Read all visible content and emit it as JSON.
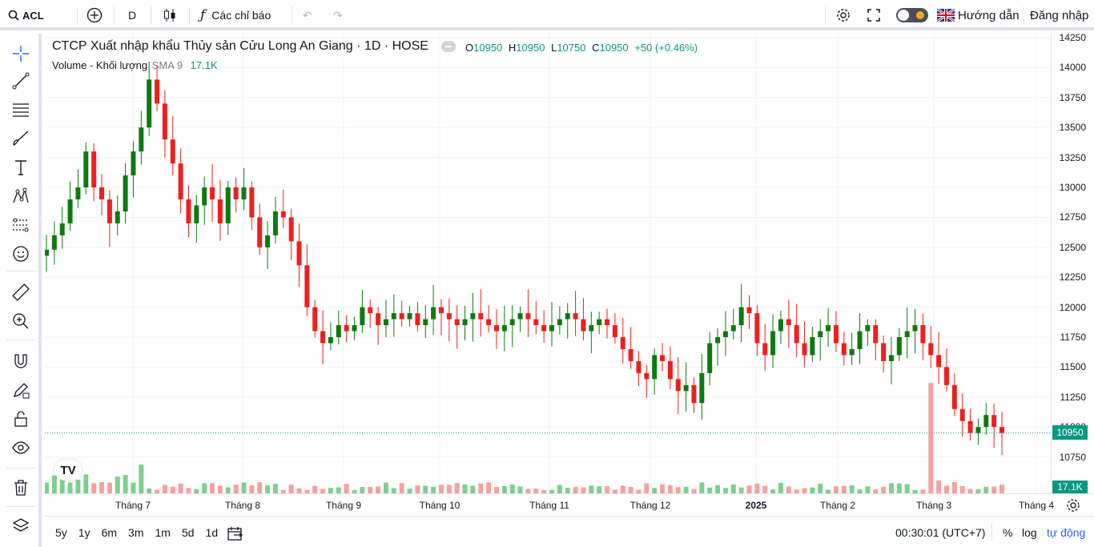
{
  "topbar": {
    "symbol": "ACL",
    "interval": "D",
    "indicators_label": "Các chỉ báo",
    "help_label": "Hướng dẫn",
    "login_label": "Đăng nhập"
  },
  "legend": {
    "title": "CTCP Xuất nhập khẩu Thủy sản Cửu Long An Giang · 1D · HOSE",
    "o_label": "O",
    "o_value": "10950",
    "h_label": "H",
    "h_value": "10950",
    "l_label": "L",
    "l_value": "10750",
    "c_label": "C",
    "c_value": "10950",
    "change": "+50 (+0.46%)"
  },
  "volume_legend": {
    "name": "Volume - Khối lượng",
    "sma": "SMA 9",
    "value": "17.1K"
  },
  "price_axis": {
    "labels": [
      "14250",
      "14000",
      "13750",
      "13500",
      "13250",
      "13000",
      "12750",
      "12500",
      "12250",
      "12000",
      "11750",
      "11500",
      "11250",
      "11000",
      "10750"
    ],
    "last_price": "10950",
    "last_volume": "17.1K"
  },
  "time_axis": {
    "labels": [
      "Tháng 7",
      "Tháng 8",
      "Tháng 9",
      "Tháng 10",
      "Tháng 11",
      "Tháng 12",
      "2025",
      "Tháng 2",
      "Tháng 3",
      "Tháng 4"
    ]
  },
  "bottombar": {
    "ranges": [
      "5y",
      "1y",
      "6m",
      "3m",
      "1m",
      "5d",
      "1d"
    ],
    "clock": "00:30:01 (UTC+7)",
    "percent": "%",
    "log": "log",
    "auto": "tự động"
  },
  "colors": {
    "up": "#0e7a0e",
    "down": "#f01e1e",
    "vol_up": "#7fcf8f",
    "vol_down": "#f7a0a0",
    "tag": "#089981"
  },
  "chart_data": {
    "type": "candlestick",
    "ylim": [
      10650,
      14300
    ],
    "last_close": 10950,
    "closes_approx": [
      12480,
      12600,
      12700,
      12900,
      13000,
      13300,
      13000,
      12900,
      12700,
      12800,
      13100,
      13300,
      13500,
      13900,
      13700,
      13400,
      13200,
      12900,
      12700,
      12850,
      13000,
      12900,
      12700,
      13000,
      12900,
      13000,
      12750,
      12500,
      12600,
      12800,
      12750,
      12550,
      12350,
      12000,
      11800,
      11700,
      11750,
      11850,
      11800,
      11850,
      12000,
      11950,
      11850,
      11900,
      11950,
      11900,
      11950,
      11850,
      11900,
      12000,
      11950,
      11900,
      11850,
      11900,
      11950,
      11900,
      11850,
      11800,
      11850,
      11900,
      11950,
      11900,
      11850,
      11800,
      11850,
      11900,
      11950,
      11900,
      11800,
      11850,
      11900,
      11850,
      11750,
      11650,
      11550,
      11450,
      11400,
      11600,
      11550,
      11400,
      11300,
      11350,
      11200,
      11450,
      11700,
      11750,
      11800,
      11850,
      12000,
      11950,
      11700,
      11600,
      11800,
      11900,
      11850,
      11700,
      11600,
      11750,
      11800,
      11850,
      11700,
      11600,
      11650,
      11800,
      11850,
      11700,
      11550,
      11600,
      11750,
      11800,
      11850,
      11700,
      11600,
      11500,
      11350,
      11150,
      11050,
      10950,
      11000,
      11100,
      11000,
      10950
    ]
  }
}
